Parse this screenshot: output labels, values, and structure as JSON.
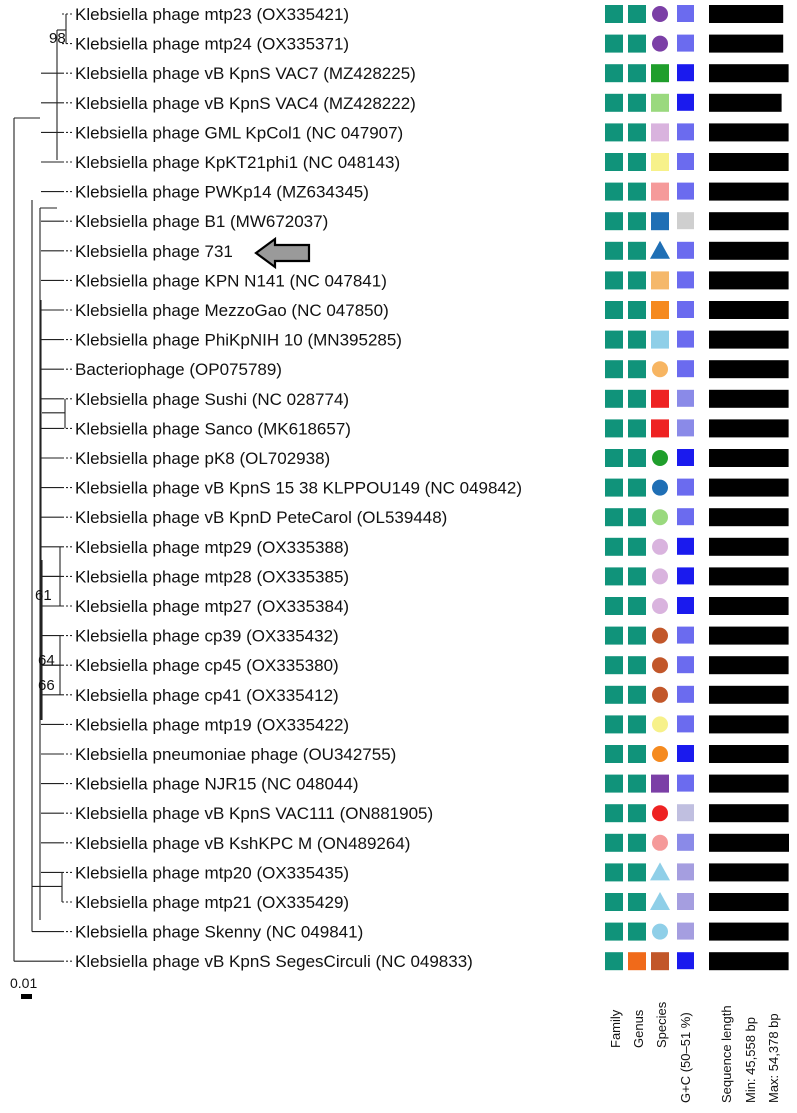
{
  "taxa": [
    {
      "label": "Klebsiella phage mtp23 (OX335421)",
      "species": {
        "shape": "circle",
        "color": "#7b3fa6"
      },
      "gc": "#6b6bef",
      "len": 0.928
    },
    {
      "label": "Klebsiella phage mtp24 (OX335371)",
      "species": {
        "shape": "circle",
        "color": "#7b3fa6"
      },
      "gc": "#6b6bef",
      "len": 0.928
    },
    {
      "label": "Klebsiella phage vB KpnS VAC7 (MZ428225)",
      "species": {
        "shape": "square",
        "color": "#1f9e2c"
      },
      "gc": "#1a1aee",
      "len": 0.995
    },
    {
      "label": "Klebsiella phage vB KpnS VAC4 (MZ428222)",
      "species": {
        "shape": "square",
        "color": "#9ad97e"
      },
      "gc": "#1a1aee",
      "len": 0.908
    },
    {
      "label": "Klebsiella phage GML KpCol1 (NC 047907)",
      "species": {
        "shape": "square",
        "color": "#d9b3de"
      },
      "gc": "#6b6bef",
      "len": 0.995
    },
    {
      "label": "Klebsiella phage KpKT21phi1 (NC 048143)",
      "species": {
        "shape": "square",
        "color": "#f7f18a"
      },
      "gc": "#6b6bef",
      "len": 0.995
    },
    {
      "label": "Klebsiella phage PWKp14 (MZ634345)",
      "species": {
        "shape": "square",
        "color": "#f59a9a"
      },
      "gc": "#6b6bef",
      "len": 0.995
    },
    {
      "label": "Klebsiella phage B1 (MW672037)",
      "species": {
        "shape": "square",
        "color": "#1f6fb5"
      },
      "gc": "#cfcfcf",
      "len": 0.995
    },
    {
      "label": "Klebsiella phage 731",
      "species": {
        "shape": "triangle",
        "color": "#1f6fb5"
      },
      "gc": "#6b6bef",
      "len": 0.995
    },
    {
      "label": "Klebsiella phage KPN N141 (NC 047841)",
      "species": {
        "shape": "square",
        "color": "#f5b86b"
      },
      "gc": "#6b6bef",
      "len": 0.995
    },
    {
      "label": "Klebsiella phage MezzoGao (NC 047850)",
      "species": {
        "shape": "square",
        "color": "#f58a1f"
      },
      "gc": "#6b6bef",
      "len": 0.995
    },
    {
      "label": "Klebsiella phage PhiKpNIH 10 (MN395285)",
      "species": {
        "shape": "square",
        "color": "#8fcfe8"
      },
      "gc": "#6b6bef",
      "len": 0.995
    },
    {
      "label": "Bacteriophage (OP075789)",
      "species": {
        "shape": "circle",
        "color": "#f7b562"
      },
      "gc": "#6b6bef",
      "len": 0.995
    },
    {
      "label": "Klebsiella phage Sushi (NC 028774)",
      "species": {
        "shape": "square",
        "color": "#ee2222"
      },
      "gc": "#8a8ae8",
      "len": 0.995
    },
    {
      "label": "Klebsiella phage Sanco (MK618657)",
      "species": {
        "shape": "square",
        "color": "#ee2222"
      },
      "gc": "#8a8ae8",
      "len": 0.995
    },
    {
      "label": "Klebsiella phage pK8 (OL702938)",
      "species": {
        "shape": "circle",
        "color": "#1f9e2c"
      },
      "gc": "#1a1aee",
      "len": 0.995
    },
    {
      "label": "Klebsiella phage vB KpnS 15 38 KLPPOU149 (NC 049842)",
      "species": {
        "shape": "circle",
        "color": "#1f6fb5"
      },
      "gc": "#6b6bef",
      "len": 0.995
    },
    {
      "label": "Klebsiella phage vB KpnD PeteCarol (OL539448)",
      "species": {
        "shape": "circle",
        "color": "#9ad97e"
      },
      "gc": "#6b6bef",
      "len": 0.995
    },
    {
      "label": "Klebsiella phage mtp29 (OX335388)",
      "species": {
        "shape": "circle",
        "color": "#d9b3de"
      },
      "gc": "#1a1aee",
      "len": 0.995
    },
    {
      "label": "Klebsiella phage mtp28 (OX335385)",
      "species": {
        "shape": "circle",
        "color": "#d9b3de"
      },
      "gc": "#1a1aee",
      "len": 0.995
    },
    {
      "label": "Klebsiella phage mtp27 (OX335384)",
      "species": {
        "shape": "circle",
        "color": "#d9b3de"
      },
      "gc": "#1a1aee",
      "len": 0.995
    },
    {
      "label": "Klebsiella phage cp39 (OX335432)",
      "species": {
        "shape": "circle",
        "color": "#c2572a"
      },
      "gc": "#6b6bef",
      "len": 0.995
    },
    {
      "label": "Klebsiella phage cp45 (OX335380)",
      "species": {
        "shape": "circle",
        "color": "#c2572a"
      },
      "gc": "#6b6bef",
      "len": 0.995
    },
    {
      "label": "Klebsiella phage cp41 (OX335412)",
      "species": {
        "shape": "circle",
        "color": "#c2572a"
      },
      "gc": "#6b6bef",
      "len": 0.995
    },
    {
      "label": "Klebsiella phage mtp19 (OX335422)",
      "species": {
        "shape": "circle",
        "color": "#f7f18a"
      },
      "gc": "#6b6bef",
      "len": 0.995
    },
    {
      "label": "Klebsiella pneumoniae phage (OU342755)",
      "species": {
        "shape": "circle",
        "color": "#f58a1f"
      },
      "gc": "#1a1aee",
      "len": 0.995
    },
    {
      "label": "Klebsiella phage NJR15 (NC 048044)",
      "species": {
        "shape": "square",
        "color": "#7b3fa6"
      },
      "gc": "#6b6bef",
      "len": 0.995
    },
    {
      "label": "Klebsiella phage vB KpnS VAC111 (ON881905)",
      "species": {
        "shape": "circle",
        "color": "#ee2222"
      },
      "gc": "#c0bfe0",
      "len": 0.995
    },
    {
      "label": "Klebsiella phage vB KshKPC M (ON489264)",
      "species": {
        "shape": "circle",
        "color": "#f59a9a"
      },
      "gc": "#8a8ae8",
      "len": 1.0
    },
    {
      "label": "Klebsiella phage mtp20 (OX335435)",
      "species": {
        "shape": "triangle",
        "color": "#8fcfe8"
      },
      "gc": "#a59ee0",
      "len": 0.995
    },
    {
      "label": "Klebsiella phage mtp21 (OX335429)",
      "species": {
        "shape": "triangle",
        "color": "#8fcfe8"
      },
      "gc": "#a59ee0",
      "len": 0.995
    },
    {
      "label": "Klebsiella phage Skenny (NC 049841)",
      "species": {
        "shape": "circle",
        "color": "#8fcfe8"
      },
      "gc": "#a59ee0",
      "len": 0.995
    },
    {
      "label": "Klebsiella phage vB KpnS SegesCirculi (NC 049833)",
      "species": {
        "shape": "square",
        "color": "#c2572a"
      },
      "gc": "#1a1aee",
      "len": 0.995,
      "family": "#10937a",
      "genus": "#f06a1a"
    }
  ],
  "colors": {
    "family_default": "#10937a",
    "genus_default": "#10937a",
    "tree_line": "#222222",
    "length_bar": "#000000",
    "arrow_fill": "#9a9a9a",
    "arrow_stroke": "#000000"
  },
  "bootstrap": [
    "98",
    "61",
    "64",
    "66"
  ],
  "highlighted": "Klebsiella phage 731",
  "scale_bar": "0.01",
  "columns": {
    "family": "Family",
    "genus": "Genus",
    "species": "Species",
    "gc": "G+C (50–51 %)",
    "seq_length": "Sequence length",
    "min": "Min: 45,558 bp",
    "max": "Max: 54,378 bp"
  }
}
